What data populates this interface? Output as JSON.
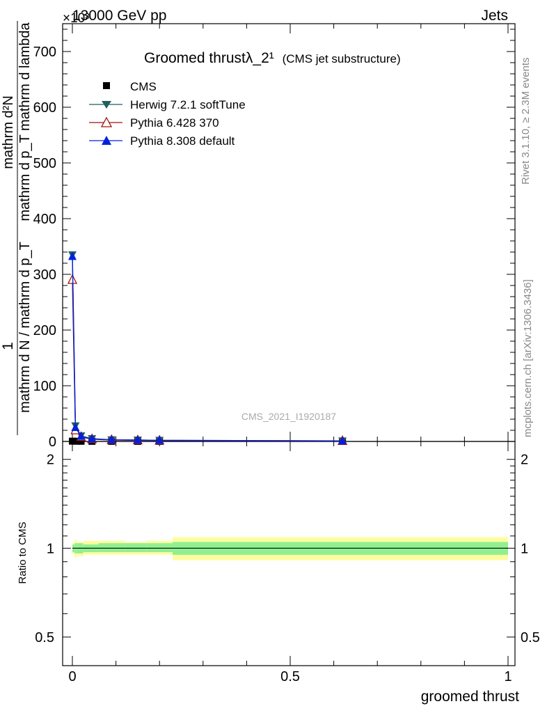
{
  "header": {
    "energy_label": "13000 GeV pp",
    "process_label": "Jets",
    "exponent_label": "×10³"
  },
  "side_labels": {
    "rivet": "Rivet 3.1.10, ≥ 2.3M events",
    "mcplots": "mcplots.cern.ch [arXiv:1306.3436]"
  },
  "watermark": "CMS_2021_I1920187",
  "colors": {
    "cms": "#000000",
    "herwig": "#1f5f5f",
    "pythia6": "#a01010",
    "pythia8": "#0022dd",
    "band_stat": "#90f090",
    "band_total": "#fdfda0"
  },
  "chart_data": [
    {
      "type": "line",
      "title": "Groomed thrustλ_2¹",
      "subtitle": "(CMS jet substructure)",
      "ylabel_top": "1",
      "ylabel_numerator": "mathrm d²N",
      "ylabel_denominator_1": "mathrm d p_T mathrm d lambda",
      "ylabel_denominator_2": "mathrm d N / mathrm d p_T",
      "xlim": [
        0,
        1
      ],
      "ylim": [
        0,
        750
      ],
      "y_scale_note": "×10³",
      "y_ticks": [
        0,
        100,
        200,
        300,
        400,
        500,
        600,
        700
      ],
      "legend_position": "top-left",
      "series": [
        {
          "name": "CMS",
          "marker": "square",
          "x": [
            0.0,
            0.01,
            0.02,
            0.045,
            0.09,
            0.15,
            0.2,
            0.62
          ],
          "values": [
            0.5,
            0.4,
            0.3,
            0.2,
            0.15,
            0.1,
            0.1,
            0.05
          ]
        },
        {
          "name": "Herwig 7.2.1 softTune",
          "marker": "triangle-down",
          "x": [
            0.0,
            0.007,
            0.02,
            0.045,
            0.09,
            0.15,
            0.2,
            0.62
          ],
          "values": [
            335,
            28,
            10,
            5,
            3,
            2.5,
            2,
            1
          ]
        },
        {
          "name": "Pythia 6.428 370",
          "marker": "triangle-up-open",
          "x": [
            0.0,
            0.007,
            0.02,
            0.045,
            0.09,
            0.15,
            0.2,
            0.62
          ],
          "values": [
            290,
            20,
            8,
            4,
            2.5,
            2,
            1.5,
            0.8
          ]
        },
        {
          "name": "Pythia 8.308 default",
          "marker": "triangle-up",
          "x": [
            0.0,
            0.007,
            0.02,
            0.045,
            0.09,
            0.15,
            0.2,
            0.62
          ],
          "values": [
            332,
            25,
            9,
            4.5,
            3,
            2.5,
            2,
            1
          ]
        }
      ]
    },
    {
      "type": "area",
      "ylabel": "Ratio to CMS",
      "xlabel": "groomed thrust",
      "xlim": [
        0,
        1
      ],
      "ylim": [
        0.4,
        2.3
      ],
      "y_ticks": [
        0.5,
        1,
        2
      ],
      "x_ticks": [
        0,
        0.5,
        1
      ],
      "ratio_line": 1,
      "bands": {
        "edges": [
          0.0,
          0.005,
          0.01,
          0.025,
          0.06,
          0.12,
          0.17,
          0.23,
          1.0
        ],
        "stat_low": [
          0.97,
          0.96,
          0.96,
          0.97,
          0.97,
          0.97,
          0.97,
          0.95
        ],
        "stat_high": [
          1.03,
          1.04,
          1.04,
          1.03,
          1.04,
          1.04,
          1.04,
          1.05
        ],
        "total_low": [
          0.96,
          0.93,
          0.94,
          0.95,
          0.95,
          0.95,
          0.95,
          0.91
        ],
        "total_high": [
          1.04,
          1.07,
          1.05,
          1.06,
          1.06,
          1.05,
          1.06,
          1.09
        ]
      }
    }
  ]
}
